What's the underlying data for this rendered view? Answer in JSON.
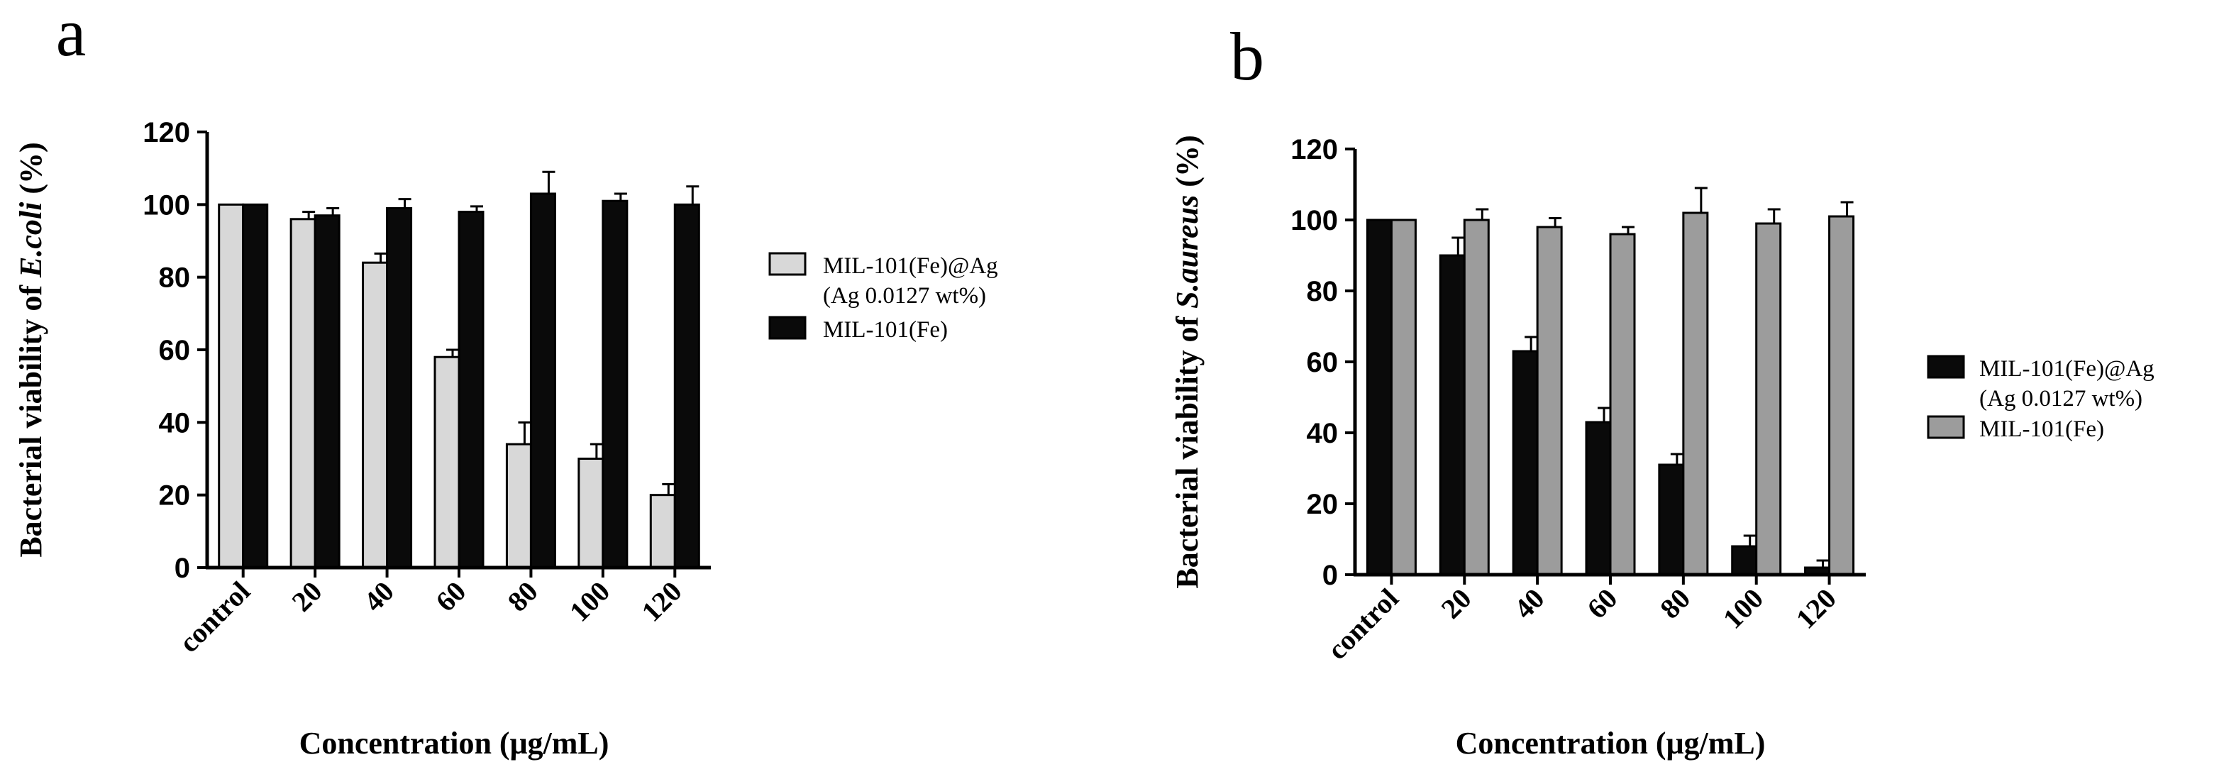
{
  "colors": {
    "light": "#d8d8d8",
    "black": "#0a0a0a",
    "gray": "#9c9c9c",
    "axis": "#000000"
  },
  "chart_data": [
    {
      "type": "bar",
      "panel_label": "a",
      "categories": [
        "control",
        "20",
        "40",
        "60",
        "80",
        "100",
        "120"
      ],
      "ylim": [
        0,
        120
      ],
      "yticks": [
        "0",
        "20",
        "40",
        "60",
        "80",
        "100",
        "120"
      ],
      "ylabel_prefix": "Bacterial viability of ",
      "ylabel_italic": "E.coli",
      "ylabel_suffix": " (%)",
      "xlabel": "Concentration (μg/mL)",
      "legend_position": "right",
      "legend_lines": [
        [
          "MIL-101(Fe)@Ag",
          "(Ag 0.0127 wt%)"
        ],
        [
          "MIL-101(Fe)"
        ]
      ],
      "series": [
        {
          "name": "MIL-101(Fe)@Ag (Ag 0.0127 wt%)",
          "color": "light",
          "values": [
            100,
            96,
            84,
            58,
            34,
            30,
            20
          ],
          "errors": [
            0,
            2,
            2.5,
            2,
            6,
            4,
            3
          ]
        },
        {
          "name": "MIL-101(Fe)",
          "color": "black",
          "values": [
            100,
            97,
            99,
            98,
            103,
            101,
            100
          ],
          "errors": [
            0,
            2,
            2.5,
            1.5,
            6,
            2,
            5
          ]
        }
      ]
    },
    {
      "type": "bar",
      "panel_label": "b",
      "categories": [
        "control",
        "20",
        "40",
        "60",
        "80",
        "100",
        "120"
      ],
      "ylim": [
        0,
        120
      ],
      "yticks": [
        "0",
        "20",
        "40",
        "60",
        "80",
        "100",
        "120"
      ],
      "ylabel_prefix": "Bacterial viability of ",
      "ylabel_italic": "S.aureus",
      "ylabel_suffix": " (%)",
      "xlabel": "Concentration (μg/mL)",
      "legend_position": "right",
      "legend_lines": [
        [
          "MIL-101(Fe)@Ag",
          "(Ag 0.0127 wt%)"
        ],
        [
          "MIL-101(Fe)"
        ]
      ],
      "series": [
        {
          "name": "MIL-101(Fe)@Ag (Ag 0.0127 wt%)",
          "color": "black",
          "values": [
            100,
            90,
            63,
            43,
            31,
            8,
            2
          ],
          "errors": [
            0,
            5,
            4,
            4,
            3,
            3,
            2
          ]
        },
        {
          "name": "MIL-101(Fe)",
          "color": "gray",
          "values": [
            100,
            100,
            98,
            96,
            102,
            99,
            101
          ],
          "errors": [
            0,
            3,
            2.5,
            2,
            7,
            4,
            4
          ]
        }
      ]
    }
  ]
}
